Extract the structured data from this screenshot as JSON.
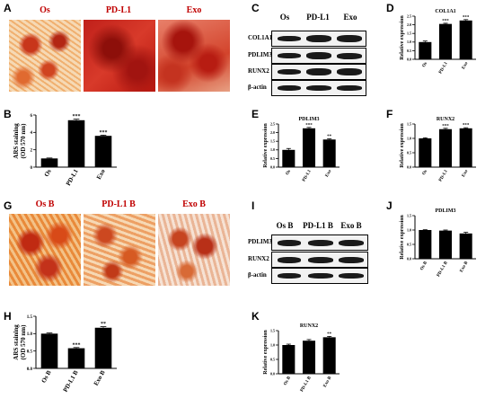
{
  "panels": {
    "A": "A",
    "B": "B",
    "C": "C",
    "D": "D",
    "E": "E",
    "F": "F",
    "G": "G",
    "H": "H",
    "I": "I",
    "J": "J",
    "K": "K"
  },
  "images_top": [
    "Os",
    "PD-L1",
    "Exo"
  ],
  "images_bottom": [
    "Os B",
    "PD-L1 B",
    "Exo B"
  ],
  "blot_top": {
    "columns": [
      "Os",
      "PD-L1",
      "Exo"
    ],
    "rows": [
      "COL1A1",
      "PDLIM3",
      "RUNX2",
      "β-actin"
    ]
  },
  "blot_bottom": {
    "columns": [
      "Os B",
      "PD-L1 B",
      "Exo B"
    ],
    "rows": [
      "PDLIM3",
      "RUNX2",
      "β-actin"
    ]
  },
  "chart_data": [
    {
      "id": "B",
      "type": "bar",
      "categories": [
        "Os",
        "PD-L1",
        "Exo"
      ],
      "values": [
        1.0,
        5.4,
        3.6
      ],
      "errors": [
        0.05,
        0.12,
        0.08
      ],
      "significance": [
        "",
        "***",
        "***"
      ],
      "title": "",
      "ylabel": "ARS staining\n(OD 570 nm)",
      "ylim": [
        0,
        6
      ],
      "yticks": [
        "0",
        "2",
        "4",
        "6"
      ],
      "ytick_values": [
        0,
        2,
        4,
        6
      ]
    },
    {
      "id": "D",
      "type": "bar",
      "categories": [
        "Os",
        "PD-L1",
        "Exo"
      ],
      "values": [
        1.0,
        2.05,
        2.25
      ],
      "errors": [
        0.06,
        0.04,
        0.05
      ],
      "significance": [
        "",
        "***",
        "***"
      ],
      "title": "COL1A1",
      "ylabel": "Relative expression",
      "ylim": [
        0,
        2.5
      ],
      "yticks": [
        "0.0",
        "0.5",
        "1.0",
        "1.5",
        "2.0",
        "2.5"
      ],
      "ytick_values": [
        0,
        0.5,
        1.0,
        1.5,
        2.0,
        2.5
      ]
    },
    {
      "id": "E",
      "type": "bar",
      "categories": [
        "Os",
        "PD-L1",
        "Exo"
      ],
      "values": [
        1.0,
        2.25,
        1.6
      ],
      "errors": [
        0.08,
        0.05,
        0.04
      ],
      "significance": [
        "",
        "***",
        "**"
      ],
      "title": "PDLIM3",
      "ylabel": "Relative expression",
      "ylim": [
        0,
        2.5
      ],
      "yticks": [
        "0.0",
        "0.5",
        "1.0",
        "1.5",
        "2.0",
        "2.5"
      ],
      "ytick_values": [
        0,
        0.5,
        1.0,
        1.5,
        2.0,
        2.5
      ]
    },
    {
      "id": "F",
      "type": "bar",
      "categories": [
        "Os",
        "PD-L1",
        "Exo"
      ],
      "values": [
        1.0,
        1.32,
        1.35
      ],
      "errors": [
        0.02,
        0.03,
        0.02
      ],
      "significance": [
        "",
        "***",
        "***"
      ],
      "title": "RUNX2",
      "ylabel": "Relative expression",
      "ylim": [
        0,
        1.5
      ],
      "yticks": [
        "0.0",
        "0.5",
        "1.0",
        "1.5"
      ],
      "ytick_values": [
        0,
        0.5,
        1.0,
        1.5
      ]
    },
    {
      "id": "H",
      "type": "bar",
      "categories": [
        "Os B",
        "PD-L1 B",
        "Exo B"
      ],
      "values": [
        1.0,
        0.58,
        1.17
      ],
      "errors": [
        0.02,
        0.02,
        0.03
      ],
      "significance": [
        "",
        "***",
        "**"
      ],
      "title": "",
      "ylabel": "ARS staining\n(OD 570 nm)",
      "ylim": [
        0,
        1.5
      ],
      "yticks": [
        "0.0",
        "0.5",
        "1.0",
        "1.5"
      ],
      "ytick_values": [
        0,
        0.5,
        1.0,
        1.5
      ]
    },
    {
      "id": "J",
      "type": "bar",
      "categories": [
        "Os B",
        "PD-L1 B",
        "Exo B"
      ],
      "values": [
        1.0,
        0.98,
        0.88
      ],
      "errors": [
        0.01,
        0.02,
        0.04
      ],
      "significance": [
        "",
        "",
        ""
      ],
      "title": "PDLIM3",
      "ylabel": "Relative expression",
      "ylim": [
        0,
        1.5
      ],
      "yticks": [
        "0.0",
        "0.5",
        "1.0",
        "1.5"
      ],
      "ytick_values": [
        0,
        0.5,
        1.0,
        1.5
      ]
    },
    {
      "id": "K",
      "type": "bar",
      "categories": [
        "Os B",
        "PD-L1 B",
        "Exo B"
      ],
      "values": [
        1.0,
        1.15,
        1.27
      ],
      "errors": [
        0.03,
        0.04,
        0.03
      ],
      "significance": [
        "",
        "",
        "**"
      ],
      "title": "RUNX2",
      "ylabel": "Relative expression",
      "ylim": [
        0,
        1.5
      ],
      "yticks": [
        "0.0",
        "0.5",
        "1.0",
        "1.5"
      ],
      "ytick_values": [
        0,
        0.5,
        1.0,
        1.5
      ]
    }
  ]
}
